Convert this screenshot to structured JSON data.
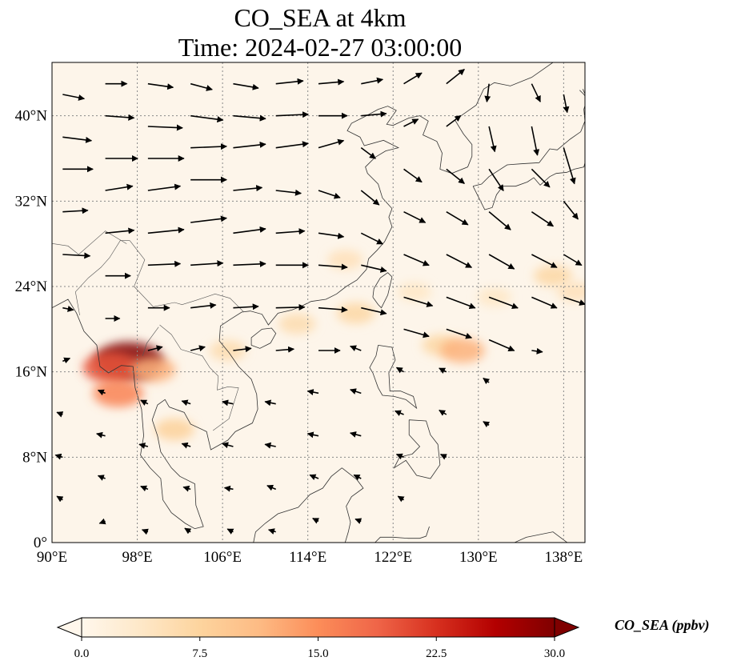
{
  "title": {
    "line1": "CO_SEA at 4km",
    "line2": "Time: 2024-02-27 03:00:00"
  },
  "map": {
    "lon_range": [
      90,
      140
    ],
    "lat_range": [
      0,
      45
    ],
    "background_color": "#fdf5ea",
    "gridlines": "dotted",
    "x_ticks": [
      {
        "value": 90,
        "label": "90°E"
      },
      {
        "value": 98,
        "label": "98°E"
      },
      {
        "value": 106,
        "label": "106°E"
      },
      {
        "value": 114,
        "label": "114°E"
      },
      {
        "value": 122,
        "label": "122°E"
      },
      {
        "value": 130,
        "label": "130°E"
      },
      {
        "value": 138,
        "label": "138°E"
      }
    ],
    "y_ticks": [
      {
        "value": 0,
        "label": "0°"
      },
      {
        "value": 8,
        "label": "8°N"
      },
      {
        "value": 16,
        "label": "16°N"
      },
      {
        "value": 24,
        "label": "24°N"
      },
      {
        "value": 32,
        "label": "32°N"
      },
      {
        "value": 40,
        "label": "40°N"
      }
    ],
    "plumes": [
      {
        "lon": 97.2,
        "lat": 17.0,
        "value": 30
      },
      {
        "lon": 95.5,
        "lat": 16.4,
        "value": 20
      },
      {
        "lon": 96.2,
        "lat": 14.0,
        "value": 16
      },
      {
        "lon": 99.5,
        "lat": 16.2,
        "value": 12
      },
      {
        "lon": 101.5,
        "lat": 10.6,
        "value": 8
      },
      {
        "lon": 106.5,
        "lat": 18.0,
        "value": 6
      },
      {
        "lon": 113.0,
        "lat": 20.5,
        "value": 6
      },
      {
        "lon": 118.5,
        "lat": 21.5,
        "value": 7
      },
      {
        "lon": 117.5,
        "lat": 26.5,
        "value": 5
      },
      {
        "lon": 124.0,
        "lat": 23.5,
        "value": 4
      },
      {
        "lon": 126.5,
        "lat": 18.5,
        "value": 7
      },
      {
        "lon": 128.5,
        "lat": 18.0,
        "value": 12
      },
      {
        "lon": 131.5,
        "lat": 23.0,
        "value": 4
      },
      {
        "lon": 137.0,
        "lat": 25.0,
        "value": 7
      },
      {
        "lon": 139.0,
        "lat": 23.5,
        "value": 5
      }
    ],
    "wind_vectors": [
      {
        "lon": 91,
        "lat": 42,
        "u": 3.0,
        "v": -0.6
      },
      {
        "lon": 91,
        "lat": 38,
        "u": 4.0,
        "v": -0.5
      },
      {
        "lon": 91,
        "lat": 35,
        "u": 4.2,
        "v": 0.0
      },
      {
        "lon": 91,
        "lat": 31,
        "u": 3.5,
        "v": 0.2
      },
      {
        "lon": 91,
        "lat": 27,
        "u": 3.8,
        "v": -0.2
      },
      {
        "lon": 91,
        "lat": 22,
        "u": 1.5,
        "v": -0.3
      },
      {
        "lon": 91,
        "lat": 17,
        "u": 1.0,
        "v": 0.4
      },
      {
        "lon": 91,
        "lat": 12,
        "u": -0.8,
        "v": 0.3
      },
      {
        "lon": 91,
        "lat": 8,
        "u": -1.0,
        "v": 0.3
      },
      {
        "lon": 91,
        "lat": 4,
        "u": -0.8,
        "v": 0.5
      },
      {
        "lon": 95,
        "lat": 43,
        "u": 3.0,
        "v": 0.0
      },
      {
        "lon": 95,
        "lat": 40,
        "u": 4.0,
        "v": -0.3
      },
      {
        "lon": 95,
        "lat": 36,
        "u": 4.5,
        "v": 0.0
      },
      {
        "lon": 95,
        "lat": 33,
        "u": 3.8,
        "v": 0.6
      },
      {
        "lon": 95,
        "lat": 29,
        "u": 4.0,
        "v": 0.4
      },
      {
        "lon": 95,
        "lat": 25,
        "u": 3.5,
        "v": 0.0
      },
      {
        "lon": 95,
        "lat": 21,
        "u": 2.0,
        "v": 0.0
      },
      {
        "lon": 95,
        "lat": 14,
        "u": -1.0,
        "v": 0.4
      },
      {
        "lon": 95,
        "lat": 10,
        "u": -1.2,
        "v": 0.3
      },
      {
        "lon": 95,
        "lat": 6,
        "u": -1.0,
        "v": 0.4
      },
      {
        "lon": 95,
        "lat": 2,
        "u": -0.8,
        "v": -0.3
      },
      {
        "lon": 99,
        "lat": 43,
        "u": 3.5,
        "v": -0.5
      },
      {
        "lon": 99,
        "lat": 39,
        "u": 4.8,
        "v": -0.2
      },
      {
        "lon": 99,
        "lat": 36,
        "u": 5.0,
        "v": 0.0
      },
      {
        "lon": 99,
        "lat": 33,
        "u": 4.5,
        "v": 0.6
      },
      {
        "lon": 99,
        "lat": 29,
        "u": 5.0,
        "v": 0.5
      },
      {
        "lon": 99,
        "lat": 26,
        "u": 4.5,
        "v": 0.2
      },
      {
        "lon": 99,
        "lat": 22,
        "u": 3.0,
        "v": 0.0
      },
      {
        "lon": 99,
        "lat": 18,
        "u": 2.0,
        "v": 0.5
      },
      {
        "lon": 99,
        "lat": 13,
        "u": -1.0,
        "v": 0.5
      },
      {
        "lon": 99,
        "lat": 9,
        "u": -1.2,
        "v": 0.3
      },
      {
        "lon": 99,
        "lat": 5,
        "u": -1.0,
        "v": 0.4
      },
      {
        "lon": 99,
        "lat": 1,
        "u": -0.8,
        "v": 0.3
      },
      {
        "lon": 103,
        "lat": 43,
        "u": 3.0,
        "v": -0.8
      },
      {
        "lon": 103,
        "lat": 40,
        "u": 4.5,
        "v": -0.6
      },
      {
        "lon": 103,
        "lat": 37,
        "u": 5.0,
        "v": 0.2
      },
      {
        "lon": 103,
        "lat": 34,
        "u": 5.0,
        "v": 0.0
      },
      {
        "lon": 103,
        "lat": 30,
        "u": 5.0,
        "v": 0.6
      },
      {
        "lon": 103,
        "lat": 26,
        "u": 4.5,
        "v": 0.3
      },
      {
        "lon": 103,
        "lat": 22,
        "u": 3.5,
        "v": 0.4
      },
      {
        "lon": 103,
        "lat": 18,
        "u": 2.0,
        "v": 0.5
      },
      {
        "lon": 103,
        "lat": 13,
        "u": -1.2,
        "v": 0.4
      },
      {
        "lon": 103,
        "lat": 9,
        "u": -1.2,
        "v": 0.4
      },
      {
        "lon": 103,
        "lat": 5,
        "u": -1.0,
        "v": 0.3
      },
      {
        "lon": 103,
        "lat": 1,
        "u": -0.8,
        "v": 0.5
      },
      {
        "lon": 107,
        "lat": 43,
        "u": 3.5,
        "v": -0.6
      },
      {
        "lon": 107,
        "lat": 40,
        "u": 4.5,
        "v": -0.4
      },
      {
        "lon": 107,
        "lat": 37,
        "u": 4.5,
        "v": 0.5
      },
      {
        "lon": 107,
        "lat": 33,
        "u": 4.0,
        "v": 0.4
      },
      {
        "lon": 107,
        "lat": 29,
        "u": 4.5,
        "v": 0.6
      },
      {
        "lon": 107,
        "lat": 26,
        "u": 4.5,
        "v": 0.2
      },
      {
        "lon": 107,
        "lat": 22,
        "u": 3.5,
        "v": 0.2
      },
      {
        "lon": 107,
        "lat": 18,
        "u": 2.5,
        "v": 0.3
      },
      {
        "lon": 107,
        "lat": 13,
        "u": -1.5,
        "v": 0.3
      },
      {
        "lon": 107,
        "lat": 9,
        "u": -1.5,
        "v": 0.4
      },
      {
        "lon": 107,
        "lat": 5,
        "u": -1.2,
        "v": 0.2
      },
      {
        "lon": 107,
        "lat": 1,
        "u": -0.8,
        "v": 0.4
      },
      {
        "lon": 111,
        "lat": 43,
        "u": 3.8,
        "v": 0.4
      },
      {
        "lon": 111,
        "lat": 40,
        "u": 4.5,
        "v": 0.2
      },
      {
        "lon": 111,
        "lat": 37,
        "u": 4.5,
        "v": 0.6
      },
      {
        "lon": 111,
        "lat": 33,
        "u": 3.5,
        "v": -0.4
      },
      {
        "lon": 111,
        "lat": 29,
        "u": 4.0,
        "v": 0.3
      },
      {
        "lon": 111,
        "lat": 26,
        "u": 4.5,
        "v": 0.0
      },
      {
        "lon": 111,
        "lat": 22,
        "u": 4.0,
        "v": 0.1
      },
      {
        "lon": 111,
        "lat": 18,
        "u": 2.5,
        "v": 0.2
      },
      {
        "lon": 111,
        "lat": 13,
        "u": -1.5,
        "v": 0.3
      },
      {
        "lon": 111,
        "lat": 9,
        "u": -1.5,
        "v": 0.3
      },
      {
        "lon": 111,
        "lat": 5,
        "u": -1.2,
        "v": 0.5
      },
      {
        "lon": 111,
        "lat": 1,
        "u": -1.0,
        "v": 0.3
      },
      {
        "lon": 115,
        "lat": 43,
        "u": 3.5,
        "v": 0.3
      },
      {
        "lon": 115,
        "lat": 40,
        "u": 4.0,
        "v": 0.0
      },
      {
        "lon": 115,
        "lat": 37,
        "u": 3.5,
        "v": 1.0
      },
      {
        "lon": 115,
        "lat": 33,
        "u": 3.0,
        "v": -1.0
      },
      {
        "lon": 115,
        "lat": 29,
        "u": 3.5,
        "v": -0.5
      },
      {
        "lon": 115,
        "lat": 26,
        "u": 4.0,
        "v": -0.3
      },
      {
        "lon": 115,
        "lat": 22,
        "u": 4.0,
        "v": -0.3
      },
      {
        "lon": 115,
        "lat": 18,
        "u": 3.0,
        "v": 0.0
      },
      {
        "lon": 115,
        "lat": 14,
        "u": -1.5,
        "v": 0.3
      },
      {
        "lon": 115,
        "lat": 10,
        "u": -1.5,
        "v": 0.3
      },
      {
        "lon": 115,
        "lat": 6,
        "u": -1.2,
        "v": 0.5
      },
      {
        "lon": 115,
        "lat": 2,
        "u": -0.8,
        "v": 0.4
      },
      {
        "lon": 119,
        "lat": 43,
        "u": 3.0,
        "v": 0.6
      },
      {
        "lon": 119,
        "lat": 40,
        "u": 3.5,
        "v": 0.3
      },
      {
        "lon": 119,
        "lat": 37,
        "u": 2.0,
        "v": -1.5
      },
      {
        "lon": 119,
        "lat": 33,
        "u": 2.5,
        "v": -2.0
      },
      {
        "lon": 119,
        "lat": 29,
        "u": 3.0,
        "v": -1.5
      },
      {
        "lon": 119,
        "lat": 26,
        "u": 3.5,
        "v": -0.8
      },
      {
        "lon": 119,
        "lat": 22,
        "u": 3.5,
        "v": -0.8
      },
      {
        "lon": 119,
        "lat": 18,
        "u": -1.5,
        "v": 0.6
      },
      {
        "lon": 119,
        "lat": 14,
        "u": -1.5,
        "v": 0.5
      },
      {
        "lon": 119,
        "lat": 10,
        "u": -1.5,
        "v": 0.4
      },
      {
        "lon": 119,
        "lat": 6,
        "u": -1.0,
        "v": 0.5
      },
      {
        "lon": 119,
        "lat": 2,
        "u": -0.8,
        "v": 0.3
      },
      {
        "lon": 123,
        "lat": 43,
        "u": 2.5,
        "v": 1.5
      },
      {
        "lon": 123,
        "lat": 39,
        "u": 2.0,
        "v": 1.0
      },
      {
        "lon": 123,
        "lat": 35,
        "u": 2.5,
        "v": -1.8
      },
      {
        "lon": 123,
        "lat": 31,
        "u": 3.0,
        "v": -1.5
      },
      {
        "lon": 123,
        "lat": 27,
        "u": 3.5,
        "v": -1.5
      },
      {
        "lon": 123,
        "lat": 23,
        "u": 4.0,
        "v": -1.2
      },
      {
        "lon": 123,
        "lat": 20,
        "u": 3.5,
        "v": -1.0
      },
      {
        "lon": 123,
        "lat": 16,
        "u": -1.0,
        "v": 0.6
      },
      {
        "lon": 123,
        "lat": 12,
        "u": -1.2,
        "v": 0.5
      },
      {
        "lon": 123,
        "lat": 8,
        "u": -1.0,
        "v": 0.4
      },
      {
        "lon": 123,
        "lat": 4,
        "u": -0.8,
        "v": 0.5
      },
      {
        "lon": 127,
        "lat": 43,
        "u": 2.5,
        "v": 2.0
      },
      {
        "lon": 127,
        "lat": 39,
        "u": 2.0,
        "v": 1.5
      },
      {
        "lon": 127,
        "lat": 35,
        "u": 2.5,
        "v": -2.0
      },
      {
        "lon": 127,
        "lat": 31,
        "u": 3.0,
        "v": -1.8
      },
      {
        "lon": 127,
        "lat": 27,
        "u": 3.5,
        "v": -1.8
      },
      {
        "lon": 127,
        "lat": 23,
        "u": 4.0,
        "v": -1.5
      },
      {
        "lon": 127,
        "lat": 20,
        "u": 3.5,
        "v": -1.2
      },
      {
        "lon": 127,
        "lat": 16,
        "u": -1.0,
        "v": 0.5
      },
      {
        "lon": 127,
        "lat": 12,
        "u": -1.0,
        "v": 0.6
      },
      {
        "lon": 127,
        "lat": 8,
        "u": -0.8,
        "v": 0.4
      },
      {
        "lon": 131,
        "lat": 43,
        "u": -0.3,
        "v": -2.5
      },
      {
        "lon": 131,
        "lat": 39,
        "u": 0.8,
        "v": -3.5
      },
      {
        "lon": 131,
        "lat": 35,
        "u": 2.0,
        "v": -3.0
      },
      {
        "lon": 131,
        "lat": 31,
        "u": 3.0,
        "v": -2.5
      },
      {
        "lon": 131,
        "lat": 27,
        "u": 3.5,
        "v": -2.0
      },
      {
        "lon": 131,
        "lat": 23,
        "u": 4.0,
        "v": -1.5
      },
      {
        "lon": 131,
        "lat": 19,
        "u": 3.5,
        "v": -1.5
      },
      {
        "lon": 131,
        "lat": 15,
        "u": -0.8,
        "v": 0.6
      },
      {
        "lon": 131,
        "lat": 11,
        "u": -0.8,
        "v": 0.5
      },
      {
        "lon": 135,
        "lat": 43,
        "u": 1.2,
        "v": -2.5
      },
      {
        "lon": 135,
        "lat": 39,
        "u": 0.8,
        "v": -4.0
      },
      {
        "lon": 135,
        "lat": 35,
        "u": 2.5,
        "v": -2.5
      },
      {
        "lon": 135,
        "lat": 31,
        "u": 3.0,
        "v": -2.0
      },
      {
        "lon": 135,
        "lat": 27,
        "u": 3.5,
        "v": -1.8
      },
      {
        "lon": 135,
        "lat": 23,
        "u": 3.5,
        "v": -1.5
      },
      {
        "lon": 135,
        "lat": 18,
        "u": 1.5,
        "v": -0.2
      },
      {
        "lon": 138,
        "lat": 42,
        "u": 0.5,
        "v": -2.5
      },
      {
        "lon": 138,
        "lat": 37,
        "u": 1.5,
        "v": -5.0
      },
      {
        "lon": 138,
        "lat": 32,
        "u": 2.0,
        "v": -2.5
      },
      {
        "lon": 138,
        "lat": 27,
        "u": 2.5,
        "v": -1.5
      },
      {
        "lon": 138,
        "lat": 23,
        "u": 3.0,
        "v": -1.0
      }
    ]
  },
  "colorbar": {
    "label": "CO_SEA (ppbv)",
    "vmin": 0,
    "vmax": 30,
    "extend": "both",
    "ticks": [
      {
        "value": 0,
        "label": "0.0"
      },
      {
        "value": 7.5,
        "label": "7.5"
      },
      {
        "value": 15,
        "label": "15.0"
      },
      {
        "value": 22.5,
        "label": "22.5"
      },
      {
        "value": 30,
        "label": "30.0"
      }
    ],
    "colormap": [
      "#fff7ec",
      "#fee8c8",
      "#fdd49e",
      "#fdbb84",
      "#fc8d59",
      "#ef6548",
      "#d7301f",
      "#b30000",
      "#7f0000"
    ]
  }
}
